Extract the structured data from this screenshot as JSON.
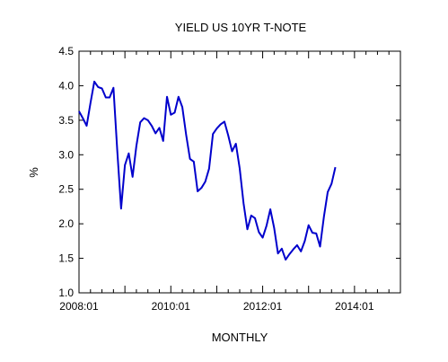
{
  "chart_data": {
    "type": "line",
    "title": "YIELD US 10YR T-NOTE",
    "xlabel": "MONTHLY",
    "ylabel": "%",
    "ylim": [
      1.0,
      4.5
    ],
    "xlim": [
      "2008-01",
      "2014-12"
    ],
    "y_ticks": [
      "1.0",
      "1.5",
      "2.0",
      "2.5",
      "3.0",
      "3.5",
      "4.0",
      "4.5"
    ],
    "x_tick_labels": [
      {
        "label": "2008:01",
        "x": "2008-01"
      },
      {
        "label": "2010:01",
        "x": "2010-01"
      },
      {
        "label": "2012:01",
        "x": "2012-01"
      },
      {
        "label": "2014:01",
        "x": "2014-01"
      }
    ],
    "grid": false,
    "series": [
      {
        "color": "#0000cc",
        "x": [
          "2008-01",
          "2008-02",
          "2008-03",
          "2008-04",
          "2008-05",
          "2008-06",
          "2008-07",
          "2008-08",
          "2008-09",
          "2008-10",
          "2008-11",
          "2008-12",
          "2009-01",
          "2009-02",
          "2009-03",
          "2009-04",
          "2009-05",
          "2009-06",
          "2009-07",
          "2009-08",
          "2009-09",
          "2009-10",
          "2009-11",
          "2009-12",
          "2010-01",
          "2010-02",
          "2010-03",
          "2010-04",
          "2010-05",
          "2010-06",
          "2010-07",
          "2010-08",
          "2010-09",
          "2010-10",
          "2010-11",
          "2010-12",
          "2011-01",
          "2011-02",
          "2011-03",
          "2011-04",
          "2011-05",
          "2011-06",
          "2011-07",
          "2011-08",
          "2011-09",
          "2011-10",
          "2011-11",
          "2011-12",
          "2012-01",
          "2012-02",
          "2012-03",
          "2012-04",
          "2012-05",
          "2012-06",
          "2012-07",
          "2012-08",
          "2012-09",
          "2012-10",
          "2012-11",
          "2012-12",
          "2013-01",
          "2013-02",
          "2013-03",
          "2013-04",
          "2013-05",
          "2013-06",
          "2013-07",
          "2013-08"
        ],
        "values": [
          3.63,
          3.53,
          3.42,
          3.75,
          4.06,
          3.98,
          3.96,
          3.83,
          3.83,
          3.97,
          3.06,
          2.22,
          2.85,
          3.02,
          2.68,
          3.13,
          3.47,
          3.53,
          3.5,
          3.42,
          3.31,
          3.39,
          3.2,
          3.84,
          3.58,
          3.61,
          3.84,
          3.69,
          3.29,
          2.94,
          2.9,
          2.47,
          2.52,
          2.61,
          2.8,
          3.3,
          3.38,
          3.44,
          3.48,
          3.28,
          3.05,
          3.16,
          2.8,
          2.3,
          1.92,
          2.12,
          2.08,
          1.88,
          1.8,
          1.97,
          2.21,
          1.94,
          1.57,
          1.64,
          1.48,
          1.56,
          1.63,
          1.69,
          1.6,
          1.75,
          1.98,
          1.87,
          1.86,
          1.67,
          2.1,
          2.46,
          2.58,
          2.82
        ]
      }
    ]
  }
}
